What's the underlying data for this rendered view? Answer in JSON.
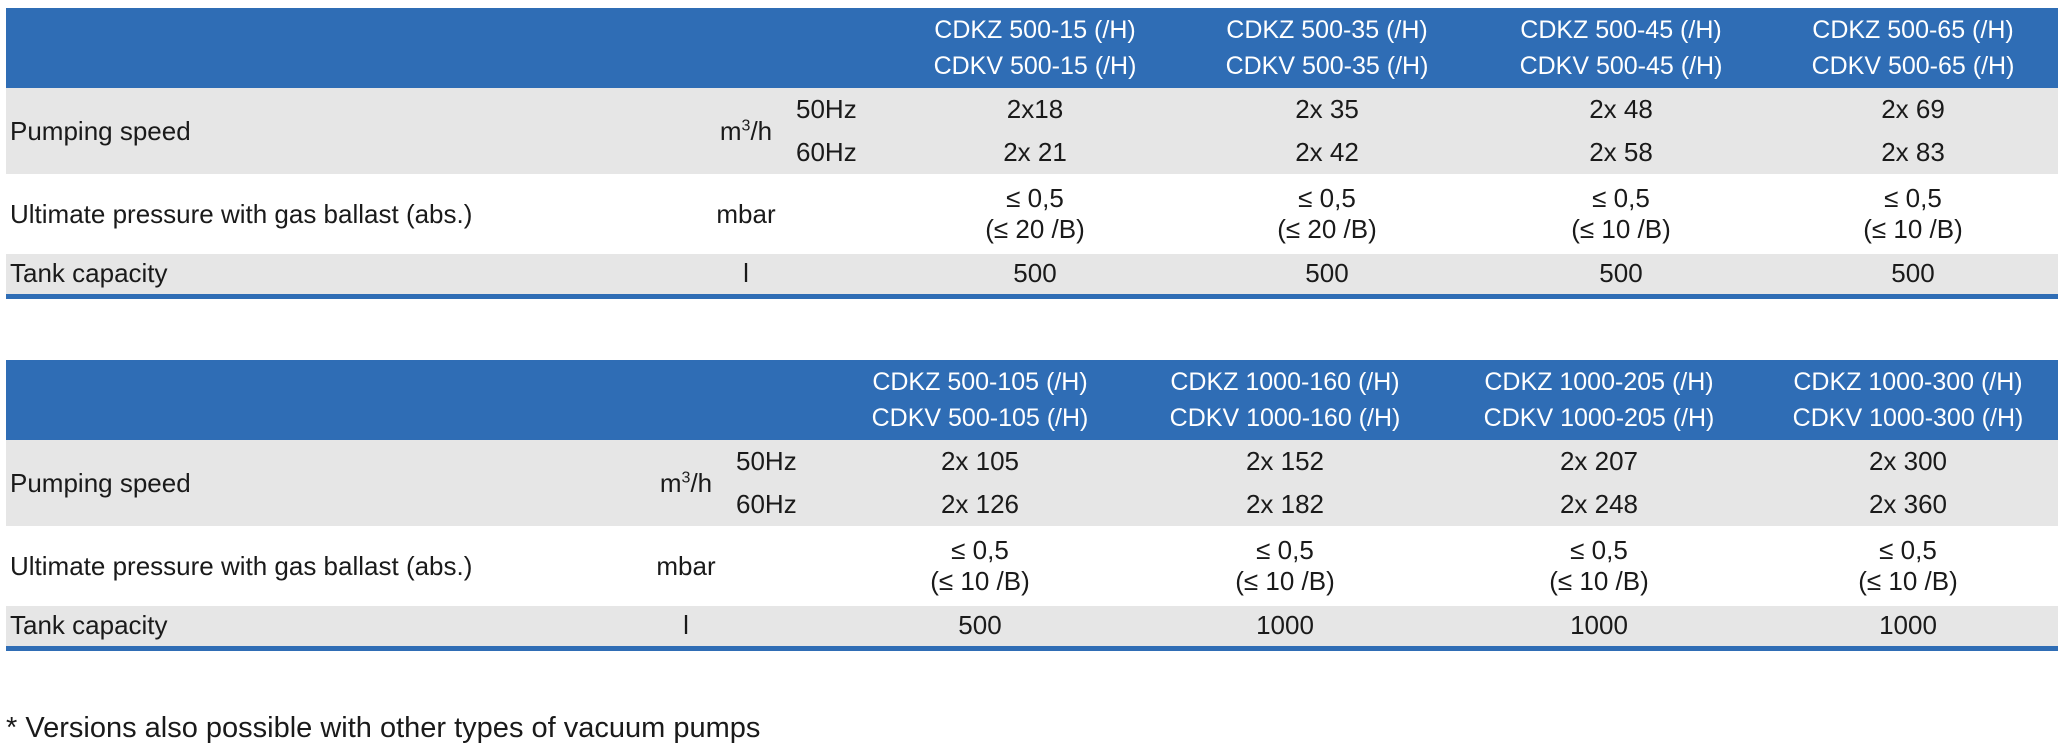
{
  "tables": [
    {
      "models": [
        {
          "line1": "CDKZ 500-15 (/H)",
          "line2": "CDKV 500-15 (/H)"
        },
        {
          "line1": "CDKZ 500-35 (/H)",
          "line2": "CDKV 500-35 (/H)"
        },
        {
          "line1": "CDKZ 500-45 (/H)",
          "line2": "CDKV 500-45 (/H)"
        },
        {
          "line1": "CDKZ 500-65 (/H)",
          "line2": "CDKV 500-65 (/H)"
        }
      ],
      "pumping_speed": {
        "label": "Pumping speed",
        "unit": "m",
        "unit_sup": "3",
        "unit_suffix": "/h",
        "freq_50": "50Hz",
        "freq_60": "60Hz",
        "values_50": [
          "2x18",
          "2x 35",
          "2x 48",
          "2x 69"
        ],
        "values_60": [
          "2x 21",
          "2x 42",
          "2x 58",
          "2x 83"
        ]
      },
      "ultimate_pressure": {
        "label": "Ultimate pressure with gas ballast  (abs.)",
        "unit": "mbar",
        "values": [
          "≤ 0,5",
          "≤ 0,5",
          "≤ 0,5",
          "≤ 0,5"
        ],
        "values_ballast": [
          "(≤ 20 /B)",
          "(≤ 20 /B)",
          "(≤ 10 /B)",
          "(≤ 10 /B)"
        ]
      },
      "tank_capacity": {
        "label": "Tank capacity",
        "unit": "l",
        "values": [
          "500",
          "500",
          "500",
          "500"
        ]
      }
    },
    {
      "models": [
        {
          "line1": "CDKZ 500-105 (/H)",
          "line2": "CDKV 500-105 (/H)"
        },
        {
          "line1": "CDKZ 1000-160 (/H)",
          "line2": "CDKV 1000-160 (/H)"
        },
        {
          "line1": "CDKZ 1000-205 (/H)",
          "line2": "CDKV 1000-205 (/H)"
        },
        {
          "line1": "CDKZ 1000-300 (/H)",
          "line2": "CDKV 1000-300 (/H)"
        }
      ],
      "pumping_speed": {
        "label": "Pumping speed",
        "unit": "m",
        "unit_sup": "3",
        "unit_suffix": "/h",
        "freq_50": "50Hz",
        "freq_60": "60Hz",
        "values_50": [
          "2x 105",
          "2x 152",
          "2x 207",
          "2x 300"
        ],
        "values_60": [
          "2x 126",
          "2x 182",
          "2x 248",
          "2x 360"
        ]
      },
      "ultimate_pressure": {
        "label": "Ultimate pressure with gas ballast (abs.)",
        "unit": "mbar",
        "values": [
          "≤ 0,5",
          "≤ 0,5",
          "≤ 0,5",
          "≤ 0,5"
        ],
        "values_ballast": [
          "(≤ 10 /B)",
          "(≤ 10 /B)",
          "(≤ 10 /B)",
          "(≤ 10 /B)"
        ]
      },
      "tank_capacity": {
        "label": "Tank capacity",
        "unit": "l",
        "values": [
          "500",
          "1000",
          "1000",
          "1000"
        ]
      }
    }
  ],
  "footnote": "* Versions also possible with other types of vacuum pumps",
  "colors": {
    "header_bg": "#2f6db5",
    "header_text": "#ffffff",
    "shaded_row": "#e6e6e6",
    "rule": "#2f6db5"
  }
}
